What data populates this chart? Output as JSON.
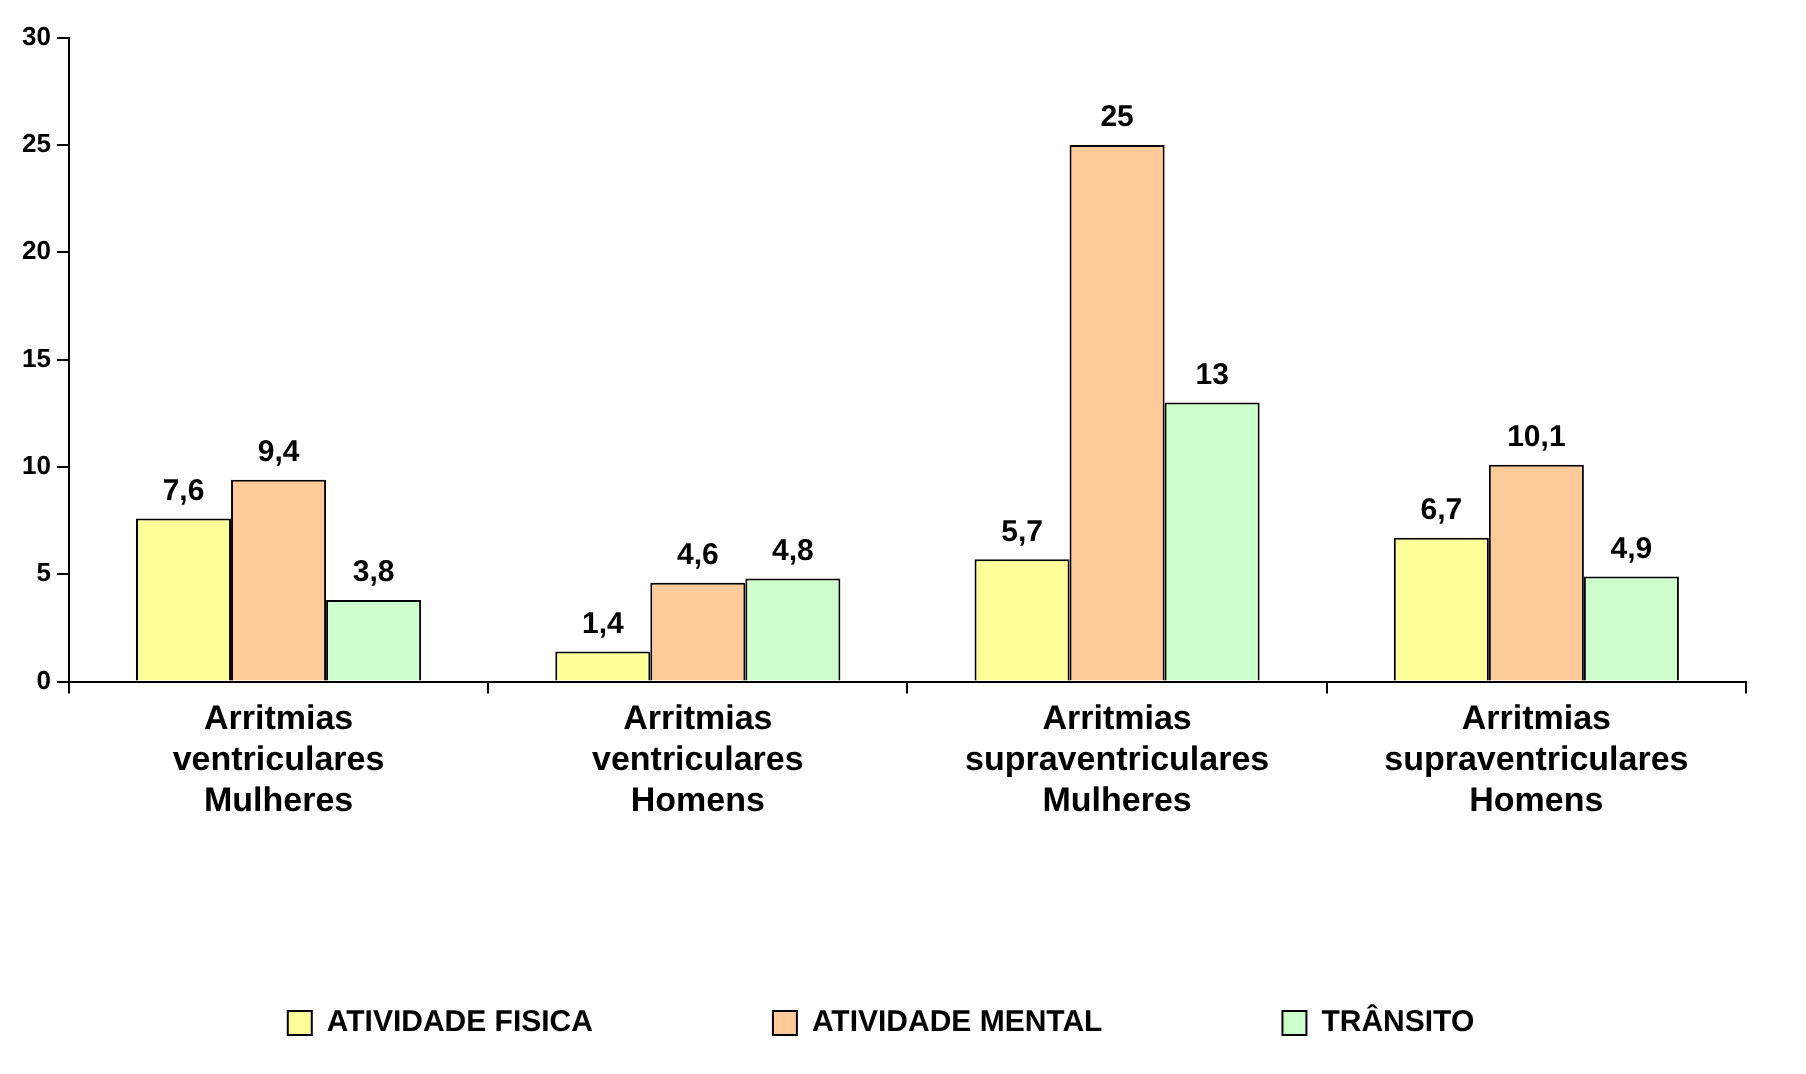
{
  "chart_data": {
    "type": "bar",
    "categories": [
      "Arritmias ventriculares Mulheres",
      "Arritmias ventriculares Homens",
      "Arritmias supraventriculares Mulheres",
      "Arritmias supraventriculares Homens"
    ],
    "series": [
      {
        "name": "ATIVIDADE FISICA",
        "color": "#ffff99",
        "values": [
          7.6,
          1.4,
          5.7,
          6.7
        ],
        "value_labels": [
          "7,6",
          "1,4",
          "5,7",
          "6,7"
        ]
      },
      {
        "name": "ATIVIDADE MENTAL",
        "color": "#ffcc99",
        "values": [
          9.4,
          4.6,
          25,
          10.1
        ],
        "value_labels": [
          "9,4",
          "4,6",
          "25",
          "10,1"
        ]
      },
      {
        "name": "TRÂNSITO",
        "color": "#ccffcc",
        "values": [
          3.8,
          4.8,
          13,
          4.9
        ],
        "value_labels": [
          "3,8",
          "4,8",
          "13",
          "4,9"
        ]
      }
    ],
    "ylim": [
      0,
      30
    ],
    "yticks": [
      0,
      5,
      10,
      15,
      20,
      25,
      30
    ],
    "grid": false,
    "legend": "bottom"
  }
}
